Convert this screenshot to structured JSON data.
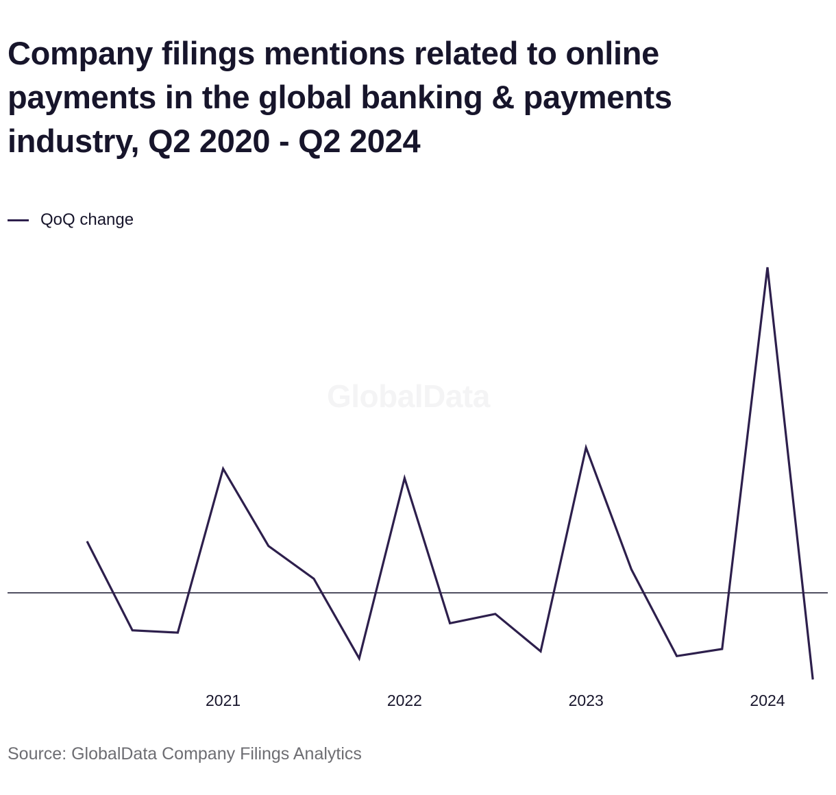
{
  "title": "Company filings mentions related to online payments in the global banking & payments industry, Q2 2020 - Q2 2024",
  "legend": {
    "label": "QoQ change"
  },
  "watermark": "GlobalData",
  "source": "Source: GlobalData Company Filings Analytics",
  "colors": {
    "line": "#2d1f4c",
    "zero_line": "#17152b",
    "text": "#17152b",
    "source_text": "#6d6d72"
  },
  "chart_data": {
    "type": "line",
    "title": "Company filings mentions related to online payments in the global banking & payments industry, Q2 2020 - Q2 2024",
    "xlabel": "",
    "ylabel": "",
    "x": [
      "Q2 2020",
      "Q3 2020",
      "Q4 2020",
      "Q1 2021",
      "Q2 2021",
      "Q3 2021",
      "Q4 2021",
      "Q1 2022",
      "Q2 2022",
      "Q3 2022",
      "Q4 2022",
      "Q1 2023",
      "Q2 2023",
      "Q3 2023",
      "Q4 2023",
      "Q1 2024",
      "Q2 2024"
    ],
    "x_tick_labels": [
      {
        "x": "Q1 2021",
        "label": "2021"
      },
      {
        "x": "Q1 2022",
        "label": "2022"
      },
      {
        "x": "Q1 2023",
        "label": "2023"
      },
      {
        "x": "Q1 2024",
        "label": "2024"
      }
    ],
    "series": [
      {
        "name": "QoQ change",
        "values": [
          0.22,
          -0.16,
          -0.17,
          0.53,
          0.2,
          0.06,
          -0.28,
          0.49,
          -0.13,
          -0.09,
          -0.25,
          0.62,
          0.1,
          -0.27,
          -0.24,
          1.39,
          -0.37
        ]
      }
    ],
    "ylim": [
      -0.45,
      1.55
    ],
    "zero_line": true,
    "grid": false,
    "legend_position": "top-left"
  }
}
